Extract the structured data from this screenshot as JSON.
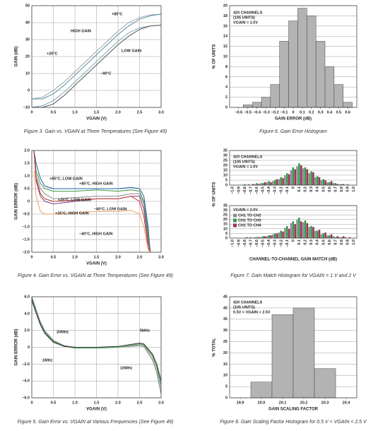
{
  "chart_data": [
    {
      "type": "line",
      "caption": "Figure 3. Gain vs. VGAIN at Three Temperatures (See Figure 49)",
      "xlabel": "VGAIN (V)",
      "ylabel": "GAIN (dB)",
      "grid": true,
      "xlim": [
        0,
        3.0
      ],
      "xticks": [
        0,
        0.5,
        {
          "value": 1.0,
          "label": "1.0"
        },
        1.5,
        {
          "value": 2.0,
          "label": "2.0"
        },
        2.5,
        {
          "value": 3.0,
          "label": "3.0"
        }
      ],
      "ylim": [
        -10,
        50
      ],
      "yticks": [
        {
          "value": -10,
          "label": "–10"
        },
        0,
        10,
        20,
        30,
        40,
        50
      ],
      "x": [
        0,
        0.25,
        0.5,
        0.75,
        1.0,
        1.25,
        1.5,
        1.75,
        2.0,
        2.25,
        2.5,
        2.75,
        3.0
      ],
      "series": [
        {
          "color": "#9aa5a8",
          "values": [
            -5,
            -4,
            0,
            5,
            11,
            17,
            23,
            29,
            35,
            40,
            43,
            44.5,
            45
          ]
        },
        {
          "color": "#5b8fa8",
          "values": [
            -5,
            -5,
            -2,
            3,
            9,
            15,
            21,
            27,
            33,
            38,
            42,
            44,
            45
          ]
        },
        {
          "color": "#7fa8b8",
          "values": [
            -10,
            -9,
            -6,
            -1,
            5,
            11,
            17,
            23,
            29,
            34,
            37,
            38,
            38.5
          ]
        },
        {
          "color": "#555555",
          "values": [
            -10,
            -10,
            -8,
            -3,
            3,
            9,
            15,
            21,
            27,
            32,
            36,
            38,
            38.5
          ]
        }
      ],
      "annotations": [
        "+85°C",
        "HIGH GAIN",
        "LOW GAIN",
        "+25°C",
        "–40°C"
      ]
    },
    {
      "type": "histogram",
      "caption": "Figure 6. Gain Error Histogram",
      "xlabel": "GAIN ERROR (dB)",
      "ylabel": "% OF UNITS",
      "grid": true,
      "color": "#b3b3b3",
      "note": [
        "420 CHANNELS",
        "(105 UNITS)",
        "VGAIN = 1.5V"
      ],
      "xlim": [
        -0.7,
        0.7
      ],
      "xticks": [
        {
          "value": -0.6,
          "label": "–0.6"
        },
        {
          "value": -0.5,
          "label": "–0.5"
        },
        {
          "value": -0.4,
          "label": "–0.4"
        },
        {
          "value": -0.3,
          "label": "–0.3"
        },
        {
          "value": -0.2,
          "label": "–0.2"
        },
        {
          "value": -0.1,
          "label": "–0.1"
        },
        0,
        0.1,
        0.2,
        0.3,
        0.4,
        0.5,
        0.6
      ],
      "ylim": [
        0,
        20
      ],
      "yticks": [
        0,
        2,
        4,
        6,
        8,
        10,
        12,
        14,
        16,
        18,
        20
      ],
      "bins": [
        -0.65,
        -0.55,
        -0.45,
        -0.35,
        -0.25,
        -0.15,
        -0.05,
        0.05,
        0.15,
        0.25,
        0.35,
        0.45,
        0.55,
        0.65
      ],
      "values": [
        0,
        0.5,
        1,
        2,
        4.5,
        13,
        17,
        19.5,
        18,
        13,
        8,
        4.5,
        1
      ]
    },
    {
      "type": "line",
      "caption": "Figure 4. Gain Error vs. VGAIN at Three Temperatures (See Figure 49)",
      "xlabel": "VGAIN (V)",
      "ylabel": "GAIN ERROR (dB)",
      "grid": true,
      "xlim": [
        0,
        3.0
      ],
      "xticks": [
        0,
        0.5,
        {
          "value": 1.0,
          "label": "1.0"
        },
        1.5,
        {
          "value": 2.0,
          "label": "2.0"
        },
        2.5,
        {
          "value": 3.0,
          "label": "3.0"
        }
      ],
      "ylim": [
        -2.0,
        2.0
      ],
      "yticks": [
        {
          "value": -2.0,
          "label": "–2.0"
        },
        {
          "value": -1.5,
          "label": "–1.5"
        },
        {
          "value": -1.0,
          "label": "–1.0"
        },
        {
          "value": -0.5,
          "label": "–0.5"
        },
        0,
        0.5,
        {
          "value": 1.0,
          "label": "1.0"
        },
        1.5,
        {
          "value": 2.0,
          "label": "2.0"
        }
      ],
      "x": [
        0.05,
        0.1,
        0.2,
        0.3,
        0.5,
        1.0,
        1.5,
        2.0,
        2.3,
        2.5,
        2.6,
        2.7,
        2.75
      ],
      "series": [
        {
          "color": "#1f5fa8",
          "values": [
            2.0,
            1.5,
            0.9,
            0.6,
            0.5,
            0.5,
            0.5,
            0.5,
            0.55,
            0.5,
            0.2,
            -1.0,
            -2.0
          ]
        },
        {
          "color": "#3c9a3c",
          "values": [
            2.0,
            1.2,
            0.7,
            0.5,
            0.4,
            0.4,
            0.45,
            0.4,
            0.45,
            0.4,
            0.0,
            -1.2,
            -2.0
          ]
        },
        {
          "color": "#888888",
          "values": [
            2.0,
            1.0,
            0.5,
            0.3,
            0.1,
            0.15,
            0.2,
            0.2,
            0.3,
            0.3,
            -0.1,
            -1.4,
            -2.0
          ]
        },
        {
          "color": "#7a3a8a",
          "values": [
            2.0,
            0.8,
            0.2,
            0.0,
            -0.1,
            0.0,
            0.1,
            0.1,
            0.2,
            0.2,
            -0.3,
            -1.6,
            -2.0
          ]
        },
        {
          "color": "#c83a2a",
          "values": [
            2.0,
            0.9,
            0.3,
            0.1,
            0.0,
            0.05,
            0.1,
            0.1,
            0.2,
            0.0,
            -0.6,
            -1.8,
            -2.0
          ]
        },
        {
          "color": "#f0a060",
          "values": [
            1.2,
            0.2,
            -0.4,
            -0.5,
            -0.5,
            -0.45,
            -0.4,
            -0.4,
            -0.35,
            -0.5,
            -1.0,
            -1.9,
            -2.0
          ]
        }
      ],
      "annotations": [
        "+85°C, LOW GAIN",
        "+85°C, HIGH GAIN",
        "+25°C, LOW GAIN",
        "–40°C, LOW GAIN",
        "+25°C, HIGH GAIN",
        "–40°C, HIGH GAIN"
      ]
    },
    {
      "type": "bar",
      "caption": "Figure 7. Gain Match Histogram for VGAIN = 1 V and 2 V",
      "xlabel": "CHANNEL-TO-CHANNEL GAIN MATCH (dB)",
      "ylabel": "% OF UNITS",
      "grid": true,
      "categories": [
        "–1.0",
        "–0.9",
        "–0.8",
        "–0.7",
        "–0.6",
        "–0.5",
        "–0.4",
        "–0.3",
        "–0.2",
        "–0.1",
        "0",
        "0.1",
        "0.2",
        "0.3",
        "0.4",
        "0.5",
        "0.6",
        "0.7",
        "0.8",
        "0.9",
        "1.0"
      ],
      "ylim": [
        0,
        35
      ],
      "yticks": [
        0,
        5,
        10,
        15,
        20,
        25,
        30,
        35
      ],
      "panels": [
        {
          "note": [
            "420 CHANNELS",
            "(105 UNITS)",
            "VGAIN = 1.0V"
          ],
          "series": [
            {
              "color": "#8c8c8c",
              "values": [
                0,
                0,
                0,
                1,
                1,
                2,
                3,
                4,
                6,
                10,
                15,
                19,
                17,
                12,
                8,
                5,
                3,
                2,
                1,
                0,
                0
              ]
            },
            {
              "color": "#2f9a4a",
              "values": [
                0,
                0,
                1,
                0,
                2,
                2,
                4,
                5,
                8,
                12,
                18,
                22,
                18,
                14,
                9,
                6,
                3,
                2,
                1,
                1,
                0
              ]
            },
            {
              "color": "#a0305a",
              "values": [
                0,
                0,
                0,
                1,
                1,
                3,
                3,
                6,
                7,
                11,
                16,
                20,
                16,
                13,
                8,
                5,
                4,
                1,
                1,
                0,
                0
              ]
            }
          ]
        },
        {
          "note": [
            "VGAIN = 2.0V"
          ],
          "series": [
            {
              "name": "CH1 TO CH2",
              "color": "#8c8c8c",
              "values": [
                0,
                0,
                0,
                0,
                1,
                1,
                2,
                4,
                6,
                11,
                16,
                20,
                17,
                12,
                8,
                4,
                3,
                2,
                1,
                1,
                0
              ]
            },
            {
              "name": "CH1 TO CH3",
              "color": "#2f9a4a",
              "values": [
                0,
                0,
                0,
                1,
                1,
                2,
                3,
                5,
                8,
                13,
                18,
                22,
                19,
                13,
                8,
                5,
                3,
                1,
                1,
                0,
                0
              ]
            },
            {
              "name": "CH1 TO CH4",
              "color": "#a0305a",
              "values": [
                0,
                0,
                1,
                0,
                1,
                2,
                3,
                5,
                7,
                10,
                15,
                18,
                16,
                12,
                9,
                6,
                4,
                2,
                2,
                1,
                0
              ]
            }
          ]
        }
      ]
    },
    {
      "type": "line",
      "caption": "Figure 5. Gain Error vs. VGAIN at Various Frequencies (See Figure 49)",
      "xlabel": "VGAIN (V)",
      "ylabel": "GAIN ERROR (dB)",
      "grid": true,
      "xlim": [
        0,
        3.0
      ],
      "xticks": [
        0,
        0.5,
        {
          "value": 1.0,
          "label": "1.0"
        },
        1.5,
        {
          "value": 2.0,
          "label": "2.0"
        },
        2.5,
        {
          "value": 3.0,
          "label": "3.0"
        }
      ],
      "ylim": [
        -6.0,
        6.0
      ],
      "yticks": [
        {
          "value": -6.0,
          "label": "–6.0"
        },
        {
          "value": -4.0,
          "label": "–4.0"
        },
        {
          "value": -2.0,
          "label": "–2.0"
        },
        0,
        {
          "value": 2.0,
          "label": "2.0"
        },
        {
          "value": 4.0,
          "label": "4.0"
        },
        {
          "value": 6.0,
          "label": "6.0"
        }
      ],
      "x": [
        0,
        0.1,
        0.2,
        0.3,
        0.5,
        0.75,
        1.0,
        1.5,
        2.0,
        2.5,
        2.6,
        2.8,
        2.9,
        3.0
      ],
      "series": [
        {
          "color": "#7a7a7a",
          "values": [
            6,
            4.5,
            3,
            2,
            0.8,
            0.2,
            0,
            0,
            0,
            0.2,
            0.1,
            -1.5,
            -3,
            -5.5
          ]
        },
        {
          "color": "#b5b5b5",
          "values": [
            5.5,
            4,
            2.6,
            1.6,
            0.6,
            0.1,
            0,
            0,
            0,
            0.3,
            0.2,
            -1.2,
            -2.6,
            -5
          ]
        },
        {
          "color": "#3c9a4a",
          "values": [
            5.8,
            4.2,
            2.8,
            1.8,
            0.7,
            0.15,
            -0.1,
            -0.1,
            0,
            0.4,
            0.3,
            -1,
            -2.3,
            -4.5
          ]
        },
        {
          "color": "#333333",
          "values": [
            5.6,
            4.1,
            2.7,
            1.7,
            0.6,
            0.1,
            0,
            0,
            0.1,
            0.5,
            0.4,
            -0.8,
            -2,
            -4
          ]
        }
      ],
      "annotations": [
        "20MHz",
        "1MHz",
        "5MHz",
        "10MHz"
      ]
    },
    {
      "type": "histogram",
      "caption": "Figure 8. Gain Scaling Factor Histogram for 0.5 V < VGAIN < 2.5 V",
      "xlabel": "GAIN SCALING FACTOR",
      "ylabel": "% TOTAL",
      "grid": true,
      "color": "#b3b3b3",
      "note": [
        "420 CHANNELS",
        "(105 UNITS)",
        "0.5V < VGAIN < 2.5V"
      ],
      "xlim": [
        19.85,
        20.45
      ],
      "xticks": [
        19.9,
        {
          "value": 20.0,
          "label": "20.0"
        },
        20.1,
        20.2,
        20.3,
        20.4
      ],
      "ylim": [
        0,
        45
      ],
      "yticks": [
        0,
        5,
        10,
        15,
        20,
        25,
        30,
        35,
        40,
        45
      ],
      "bins": [
        19.95,
        20.05,
        20.15,
        20.25,
        20.35
      ],
      "values": [
        7,
        37,
        40,
        13
      ]
    }
  ]
}
